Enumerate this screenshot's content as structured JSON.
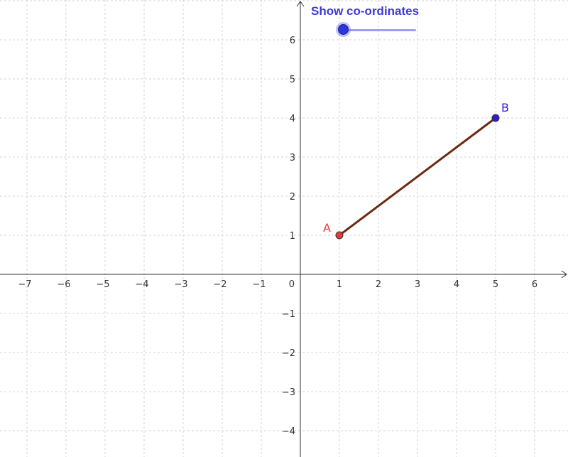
{
  "graph": {
    "x_ticks": [
      "−7",
      "−6",
      "−5",
      "−4",
      "−3",
      "−2",
      "−1",
      "0",
      "1",
      "2",
      "3",
      "4",
      "5",
      "6"
    ],
    "y_ticks": [
      "6",
      "5",
      "4",
      "3",
      "2",
      "1",
      "−1",
      "−2",
      "−3",
      "−4"
    ],
    "x_range": [
      -7.6,
      6.8
    ],
    "y_range": [
      -4.6,
      6.9
    ],
    "grid": true
  },
  "points": {
    "A": {
      "label": "A",
      "x": 1,
      "y": 1,
      "color": "#e8383c",
      "label_color": "#e8383c"
    },
    "B": {
      "label": "B",
      "x": 5,
      "y": 4,
      "color": "#2a1fd0",
      "label_color": "#2a1fd0"
    }
  },
  "segment": {
    "from": "A",
    "to": "B",
    "color": "#6b2a12"
  },
  "slider": {
    "caption": "Show co-ordinates",
    "value": 0,
    "accent": "#3a3ad8"
  }
}
